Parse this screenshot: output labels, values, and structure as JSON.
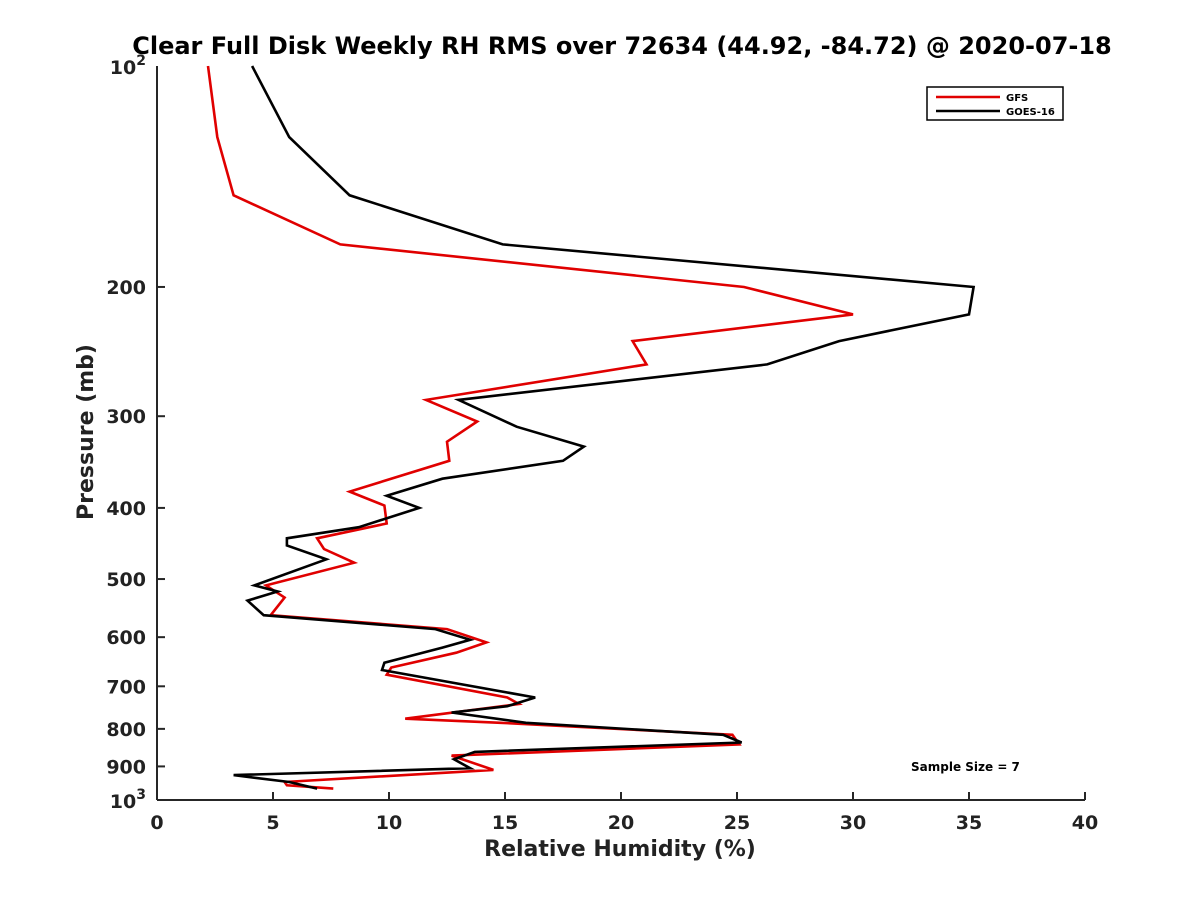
{
  "chart_data": {
    "type": "line",
    "title": "Clear Full Disk Weekly RH RMS over 72634 (44.92, -84.72) @ 2020-07-18",
    "xlabel": "Relative Humidity (%)",
    "ylabel": "Pressure (mb)",
    "xlim": [
      0,
      40
    ],
    "ylim": [
      100,
      1000
    ],
    "yscale": "log",
    "y_reversed": true,
    "grid": false,
    "legend_position": "top-right",
    "x_ticks": [
      0,
      5,
      10,
      15,
      20,
      25,
      30,
      35,
      40
    ],
    "x_tick_labels": [
      "0",
      "5",
      "10",
      "15",
      "20",
      "25",
      "30",
      "35",
      "40"
    ],
    "y_ticks": [
      200,
      300,
      400,
      500,
      600,
      700,
      800,
      900
    ],
    "y_tick_labels": [
      "200",
      "300",
      "400",
      "500",
      "600",
      "700",
      "800",
      "900"
    ],
    "y_end_labels": [
      {
        "value": 100,
        "base": "10",
        "exp": "2"
      },
      {
        "value": 1000,
        "base": "10",
        "exp": "3"
      }
    ],
    "annotation": "Sample Size = 7",
    "series": [
      {
        "name": "GFS",
        "color": "#e00000",
        "points": [
          [
            2.2,
            100
          ],
          [
            2.6,
            125
          ],
          [
            3.3,
            150
          ],
          [
            7.9,
            175
          ],
          [
            25.3,
            200
          ],
          [
            30.0,
            218
          ],
          [
            20.5,
            237
          ],
          [
            21.1,
            255
          ],
          [
            11.6,
            285
          ],
          [
            13.8,
            305
          ],
          [
            12.5,
            325
          ],
          [
            12.6,
            345
          ],
          [
            8.3,
            380
          ],
          [
            9.8,
            397
          ],
          [
            9.9,
            420
          ],
          [
            6.9,
            440
          ],
          [
            7.2,
            455
          ],
          [
            8.5,
            475
          ],
          [
            4.7,
            510
          ],
          [
            5.5,
            530
          ],
          [
            4.9,
            560
          ],
          [
            12.5,
            585
          ],
          [
            14.2,
            610
          ],
          [
            12.9,
            630
          ],
          [
            10.1,
            660
          ],
          [
            9.9,
            675
          ],
          [
            15.1,
            725
          ],
          [
            15.6,
            740
          ],
          [
            10.7,
            775
          ],
          [
            14.8,
            785
          ],
          [
            24.8,
            815
          ],
          [
            25.1,
            840
          ],
          [
            12.7,
            870
          ],
          [
            14.5,
            910
          ],
          [
            5.5,
            945
          ],
          [
            5.6,
            955
          ],
          [
            7.6,
            965
          ]
        ]
      },
      {
        "name": "GOES-16",
        "color": "#000000",
        "points": [
          [
            4.1,
            100
          ],
          [
            5.7,
            125
          ],
          [
            8.3,
            150
          ],
          [
            14.9,
            175
          ],
          [
            35.2,
            200
          ],
          [
            35.0,
            218
          ],
          [
            29.4,
            237
          ],
          [
            26.3,
            255
          ],
          [
            13.0,
            285
          ],
          [
            15.5,
            310
          ],
          [
            18.4,
            330
          ],
          [
            17.5,
            345
          ],
          [
            12.3,
            365
          ],
          [
            9.9,
            385
          ],
          [
            11.3,
            400
          ],
          [
            8.7,
            425
          ],
          [
            5.6,
            440
          ],
          [
            5.6,
            450
          ],
          [
            7.3,
            470
          ],
          [
            4.2,
            510
          ],
          [
            5.2,
            520
          ],
          [
            3.9,
            535
          ],
          [
            4.6,
            560
          ],
          [
            12.0,
            585
          ],
          [
            13.5,
            605
          ],
          [
            12.3,
            620
          ],
          [
            9.8,
            650
          ],
          [
            9.7,
            665
          ],
          [
            16.3,
            725
          ],
          [
            15.1,
            745
          ],
          [
            12.7,
            760
          ],
          [
            15.9,
            785
          ],
          [
            24.4,
            815
          ],
          [
            25.2,
            835
          ],
          [
            13.7,
            860
          ],
          [
            12.8,
            880
          ],
          [
            13.5,
            905
          ],
          [
            3.3,
            925
          ],
          [
            5.7,
            945
          ],
          [
            6.9,
            965
          ]
        ]
      }
    ]
  }
}
